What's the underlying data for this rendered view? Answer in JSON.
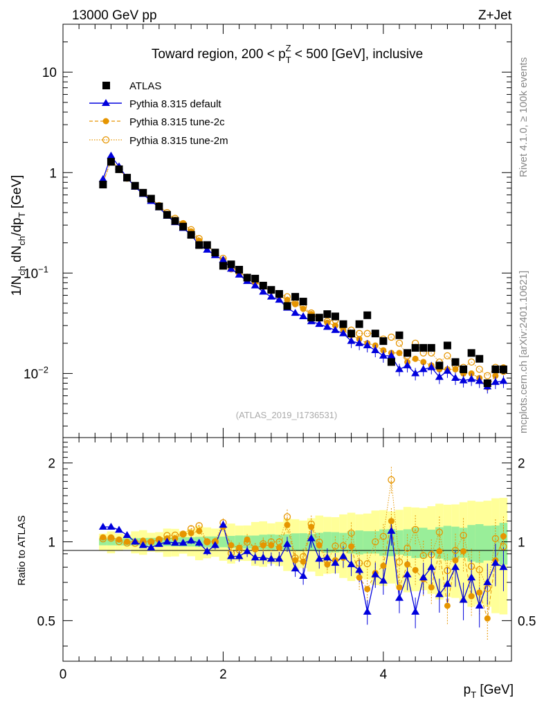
{
  "header": {
    "left": "13000 GeV pp",
    "right": "Z+Jet",
    "side_top": "Rivet 4.1.0, ≥ 100k events",
    "side_bottom": "mcplots.cern.ch [arXiv:2401.10621]"
  },
  "chart_data": {
    "type": "scatter",
    "title": "Toward region, 200 < p_T^Z < 500 [GeV], inclusive",
    "analysis": "(ATLAS_2019_I1736531)",
    "xlabel": "p_T [GeV]",
    "ylabel": "1/N_ch dN_ch/dp_T [GeV]",
    "ratio_ylabel": "Ratio to ATLAS",
    "xlim": [
      0,
      5.6
    ],
    "ylim": [
      0.0023,
      30
    ],
    "ratio_ylim": [
      0.35,
      2.5
    ],
    "x_ticks": [
      "0",
      "2",
      "4"
    ],
    "y_ticks": [
      "10^-2",
      "10^-1",
      "1",
      "10"
    ],
    "ratio_ticks": [
      "0.5",
      "1",
      "2"
    ],
    "legend": [
      {
        "name": "ATLAS",
        "style": "black-square"
      },
      {
        "name": "Pythia 8.315 default",
        "style": "blue-triangle-line"
      },
      {
        "name": "Pythia 8.315 tune-2c",
        "style": "orange-dot-dashed"
      },
      {
        "name": "Pythia 8.315 tune-2m",
        "style": "orange-open-circle-dotted"
      }
    ],
    "x": [
      0.5,
      0.6,
      0.7,
      0.8,
      0.9,
      1.0,
      1.1,
      1.2,
      1.3,
      1.4,
      1.5,
      1.6,
      1.7,
      1.8,
      1.9,
      2.0,
      2.1,
      2.2,
      2.3,
      2.4,
      2.5,
      2.6,
      2.7,
      2.8,
      2.9,
      3.0,
      3.1,
      3.2,
      3.3,
      3.4,
      3.5,
      3.6,
      3.7,
      3.8,
      3.9,
      4.0,
      4.1,
      4.2,
      4.3,
      4.4,
      4.5,
      4.6,
      4.7,
      4.8,
      4.9,
      5.0,
      5.1,
      5.2,
      5.3,
      5.4,
      5.5
    ],
    "atlas": [
      0.76,
      1.28,
      1.08,
      0.89,
      0.74,
      0.63,
      0.55,
      0.46,
      0.38,
      0.33,
      0.29,
      0.24,
      0.19,
      0.19,
      0.16,
      0.118,
      0.122,
      0.108,
      0.09,
      0.088,
      0.075,
      0.068,
      0.062,
      0.047,
      0.058,
      0.052,
      0.036,
      0.036,
      0.039,
      0.037,
      0.031,
      0.025,
      0.031,
      0.038,
      0.025,
      0.021,
      0.013,
      0.024,
      0.016,
      0.018,
      0.018,
      0.018,
      0.012,
      0.019,
      0.013,
      0.011,
      0.016,
      0.014,
      0.008,
      0.011,
      0.011
    ],
    "series": [
      {
        "name": "Pythia 8.315 default",
        "color": "#0000dd",
        "values": [
          0.86,
          1.47,
          1.15,
          0.89,
          0.72,
          0.61,
          0.52,
          0.45,
          0.37,
          0.32,
          0.28,
          0.24,
          0.19,
          0.17,
          0.15,
          0.135,
          0.11,
          0.096,
          0.083,
          0.075,
          0.065,
          0.058,
          0.054,
          0.045,
          0.04,
          0.037,
          0.033,
          0.031,
          0.029,
          0.027,
          0.025,
          0.021,
          0.02,
          0.019,
          0.017,
          0.015,
          0.015,
          0.011,
          0.012,
          0.01,
          0.011,
          0.0115,
          0.0092,
          0.0106,
          0.009,
          0.0085,
          0.0088,
          0.0084,
          0.0074,
          0.0082,
          0.0084
        ]
      },
      {
        "name": "Pythia 8.315 tune-2c",
        "color": "#e69500",
        "values": [
          0.79,
          1.33,
          1.1,
          0.89,
          0.74,
          0.64,
          0.55,
          0.47,
          0.39,
          0.34,
          0.31,
          0.26,
          0.21,
          0.19,
          0.16,
          0.135,
          0.118,
          0.102,
          0.092,
          0.082,
          0.073,
          0.066,
          0.059,
          0.054,
          0.049,
          0.044,
          0.039,
          0.035,
          0.032,
          0.03,
          0.027,
          0.024,
          0.022,
          0.02,
          0.019,
          0.017,
          0.016,
          0.016,
          0.013,
          0.014,
          0.013,
          0.012,
          0.011,
          0.011,
          0.011,
          0.01,
          0.01,
          0.009,
          0.0073,
          0.0095,
          0.0115
        ]
      },
      {
        "name": "Pythia 8.315 tune-2m",
        "color": "#e69500",
        "values": [
          0.78,
          1.32,
          1.08,
          0.88,
          0.73,
          0.63,
          0.55,
          0.47,
          0.4,
          0.35,
          0.31,
          0.27,
          0.22,
          0.19,
          0.16,
          0.14,
          0.11,
          0.1,
          0.09,
          0.082,
          0.074,
          0.068,
          0.062,
          0.058,
          0.05,
          0.046,
          0.04,
          0.036,
          0.033,
          0.034,
          0.03,
          0.027,
          0.025,
          0.025,
          0.025,
          0.022,
          0.023,
          0.02,
          0.015,
          0.02,
          0.016,
          0.016,
          0.013,
          0.015,
          0.012,
          0.0115,
          0.013,
          0.011,
          0.0095,
          0.0115,
          0.0105
        ]
      }
    ],
    "ratios": {
      "Pythia 8.315 default": [
        1.14,
        1.14,
        1.11,
        1.06,
        1.0,
        0.97,
        0.95,
        0.98,
        1.0,
        0.99,
        0.99,
        1.01,
        0.99,
        0.92,
        0.97,
        1.16,
        0.88,
        0.88,
        0.92,
        0.87,
        0.87,
        0.86,
        0.86,
        0.98,
        0.79,
        0.74,
        1.03,
        0.86,
        0.87,
        0.83,
        0.88,
        0.82,
        0.78,
        0.54,
        0.75,
        0.71,
        1.1,
        0.61,
        0.75,
        0.54,
        0.73,
        0.8,
        0.63,
        0.69,
        0.8,
        0.6,
        0.73,
        0.57,
        0.7,
        0.83,
        0.8
      ],
      "Pythia 8.315 tune-2c": [
        1.04,
        1.04,
        1.02,
        1.0,
        1.0,
        1.01,
        1.0,
        1.02,
        1.03,
        1.03,
        1.07,
        1.08,
        1.1,
        1.0,
        1.0,
        1.14,
        0.97,
        0.95,
        1.02,
        0.94,
        0.97,
        0.97,
        0.95,
        1.16,
        0.85,
        0.84,
        1.14,
        0.97,
        0.82,
        0.85,
        0.87,
        0.96,
        0.73,
        0.66,
        0.76,
        0.81,
        1.2,
        0.67,
        0.82,
        0.78,
        0.72,
        0.67,
        0.92,
        0.57,
        0.85,
        0.92,
        0.62,
        0.64,
        0.51,
        0.85,
        1.05
      ]
    },
    "bands_note": "green = ATLAS stat, yellow = stat+syst"
  }
}
